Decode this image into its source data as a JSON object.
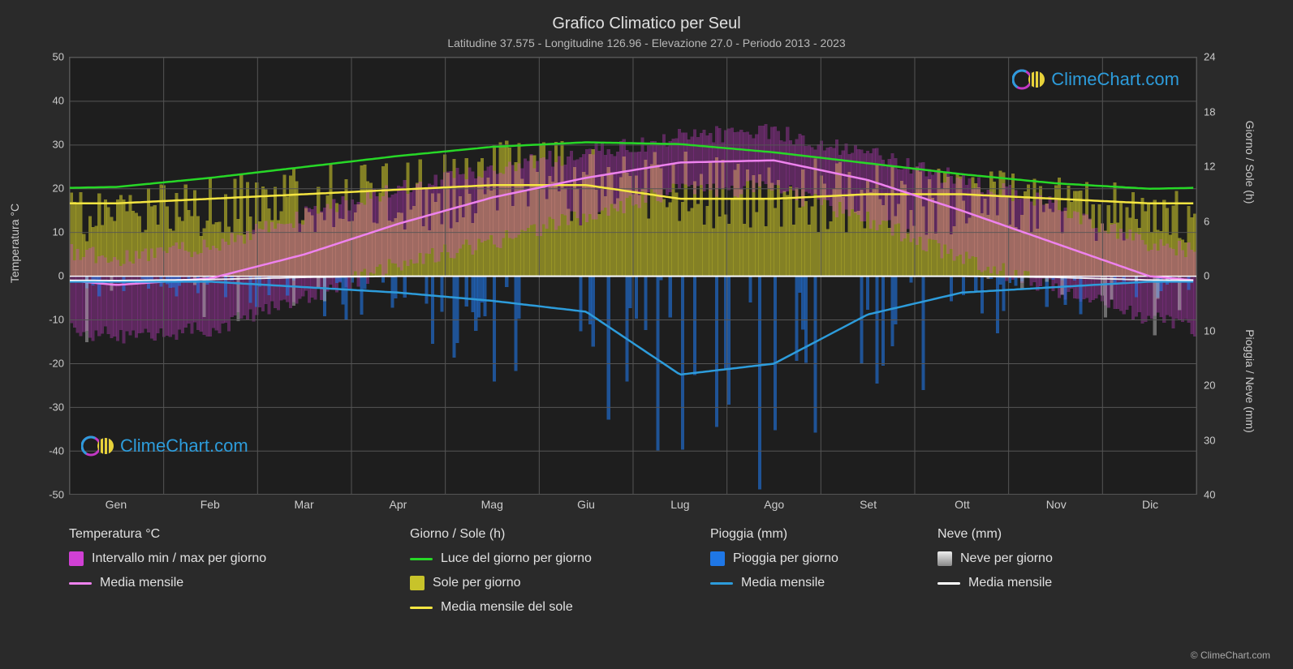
{
  "title": "Grafico Climatico per Seul",
  "subtitle": "Latitudine 37.575 - Longitudine 126.96 - Elevazione 27.0 - Periodo 2013 - 2023",
  "logo_text": "ClimeChart.com",
  "copyright": "© ClimeChart.com",
  "logo_colors": {
    "ring1": "#2d9cdb",
    "ring2": "#c238c4",
    "orb": "#e8d23a"
  },
  "background": "#2a2a2a",
  "plot_background": "#1e1e1e",
  "grid_color": "#555555",
  "zero_line_color": "#ffffff",
  "text_color": "#cccccc",
  "axis_left": {
    "label": "Temperatura °C",
    "ticks": [
      -50,
      -40,
      -30,
      -20,
      -10,
      0,
      10,
      20,
      30,
      40,
      50
    ],
    "min": -50,
    "max": 50,
    "fontsize": 13
  },
  "axis_right_top": {
    "label": "Giorno / Sole (h)",
    "ticks": [
      0,
      6,
      12,
      18,
      24
    ],
    "max": 24,
    "fontsize": 13
  },
  "axis_right_bottom": {
    "label": "Pioggia / Neve (mm)",
    "ticks": [
      0,
      10,
      20,
      30,
      40
    ],
    "min": 0,
    "max": 40,
    "fontsize": 13
  },
  "axis_x": {
    "labels": [
      "Gen",
      "Feb",
      "Mar",
      "Apr",
      "Mag",
      "Giu",
      "Lug",
      "Ago",
      "Set",
      "Ott",
      "Nov",
      "Dic"
    ],
    "fontsize": 14
  },
  "title_fontsize": 20,
  "subtitle_fontsize": 14,
  "legend": {
    "temp": {
      "heading": "Temperatura °C",
      "range": "Intervallo min / max per giorno",
      "mean": "Media mensile"
    },
    "day": {
      "heading": "Giorno / Sole (h)",
      "daylight": "Luce del giorno per giorno",
      "sun": "Sole per giorno",
      "sun_mean": "Media mensile del sole"
    },
    "rain": {
      "heading": "Pioggia (mm)",
      "daily": "Pioggia per giorno",
      "mean": "Media mensile"
    },
    "snow": {
      "heading": "Neve (mm)",
      "daily": "Neve per giorno",
      "mean": "Media mensile"
    }
  },
  "series": {
    "months": [
      1,
      2,
      3,
      4,
      5,
      6,
      7,
      8,
      9,
      10,
      11,
      12
    ],
    "temp_mean": {
      "color": "#ee82ee",
      "width": 2.5,
      "values": [
        -2.0,
        -0.5,
        5.0,
        12.0,
        18.0,
        22.5,
        26.0,
        26.5,
        22.0,
        15.0,
        7.5,
        0.0
      ]
    },
    "temp_min_daily": {
      "color": "#d040d4",
      "opacity": 0.35,
      "values": [
        -14,
        -12,
        -5,
        3,
        8,
        14,
        20,
        20,
        13,
        4,
        -3,
        -10
      ]
    },
    "temp_max_daily": {
      "color": "#d040d4",
      "opacity": 0.35,
      "values": [
        4,
        7,
        14,
        20,
        25,
        28,
        32,
        33,
        28,
        22,
        16,
        7
      ]
    },
    "daylight": {
      "color": "#27d827",
      "width": 2.5,
      "values": [
        9.8,
        10.8,
        12.0,
        13.2,
        14.2,
        14.7,
        14.5,
        13.6,
        12.4,
        11.2,
        10.2,
        9.6
      ]
    },
    "sun_daily_band_top": {
      "color": "#c8c32a",
      "opacity": 0.6,
      "values": [
        9.0,
        10.0,
        11.0,
        12.0,
        13.5,
        14.0,
        13.0,
        12.0,
        11.5,
        11.0,
        10.0,
        9.0
      ]
    },
    "sun_mean": {
      "color": "#f5e642",
      "width": 2.5,
      "values": [
        8.0,
        8.5,
        9.0,
        9.5,
        10.0,
        10.0,
        8.5,
        8.5,
        9.0,
        9.0,
        8.5,
        8.0
      ]
    },
    "rain_mean": {
      "color": "#2d9cdb",
      "width": 2.5,
      "values": [
        1.0,
        1.0,
        2.0,
        3.0,
        4.5,
        6.5,
        18.0,
        16.0,
        7.0,
        3.0,
        2.0,
        1.0
      ]
    },
    "rain_daily_max": {
      "color": "#1f77e6",
      "opacity": 0.6,
      "values": [
        4,
        5,
        8,
        12,
        20,
        28,
        40,
        40,
        32,
        14,
        10,
        5
      ]
    },
    "snow_daily_max": {
      "color": "#bdbdbd",
      "opacity": 0.5,
      "values": [
        15,
        12,
        6,
        0,
        0,
        0,
        0,
        0,
        0,
        0,
        4,
        12
      ]
    },
    "snow_mean": {
      "color": "#ffffff",
      "width": 2,
      "values": [
        0.8,
        0.6,
        0.2,
        0,
        0,
        0,
        0,
        0,
        0,
        0,
        0.2,
        0.7
      ]
    }
  },
  "n_days": 365
}
